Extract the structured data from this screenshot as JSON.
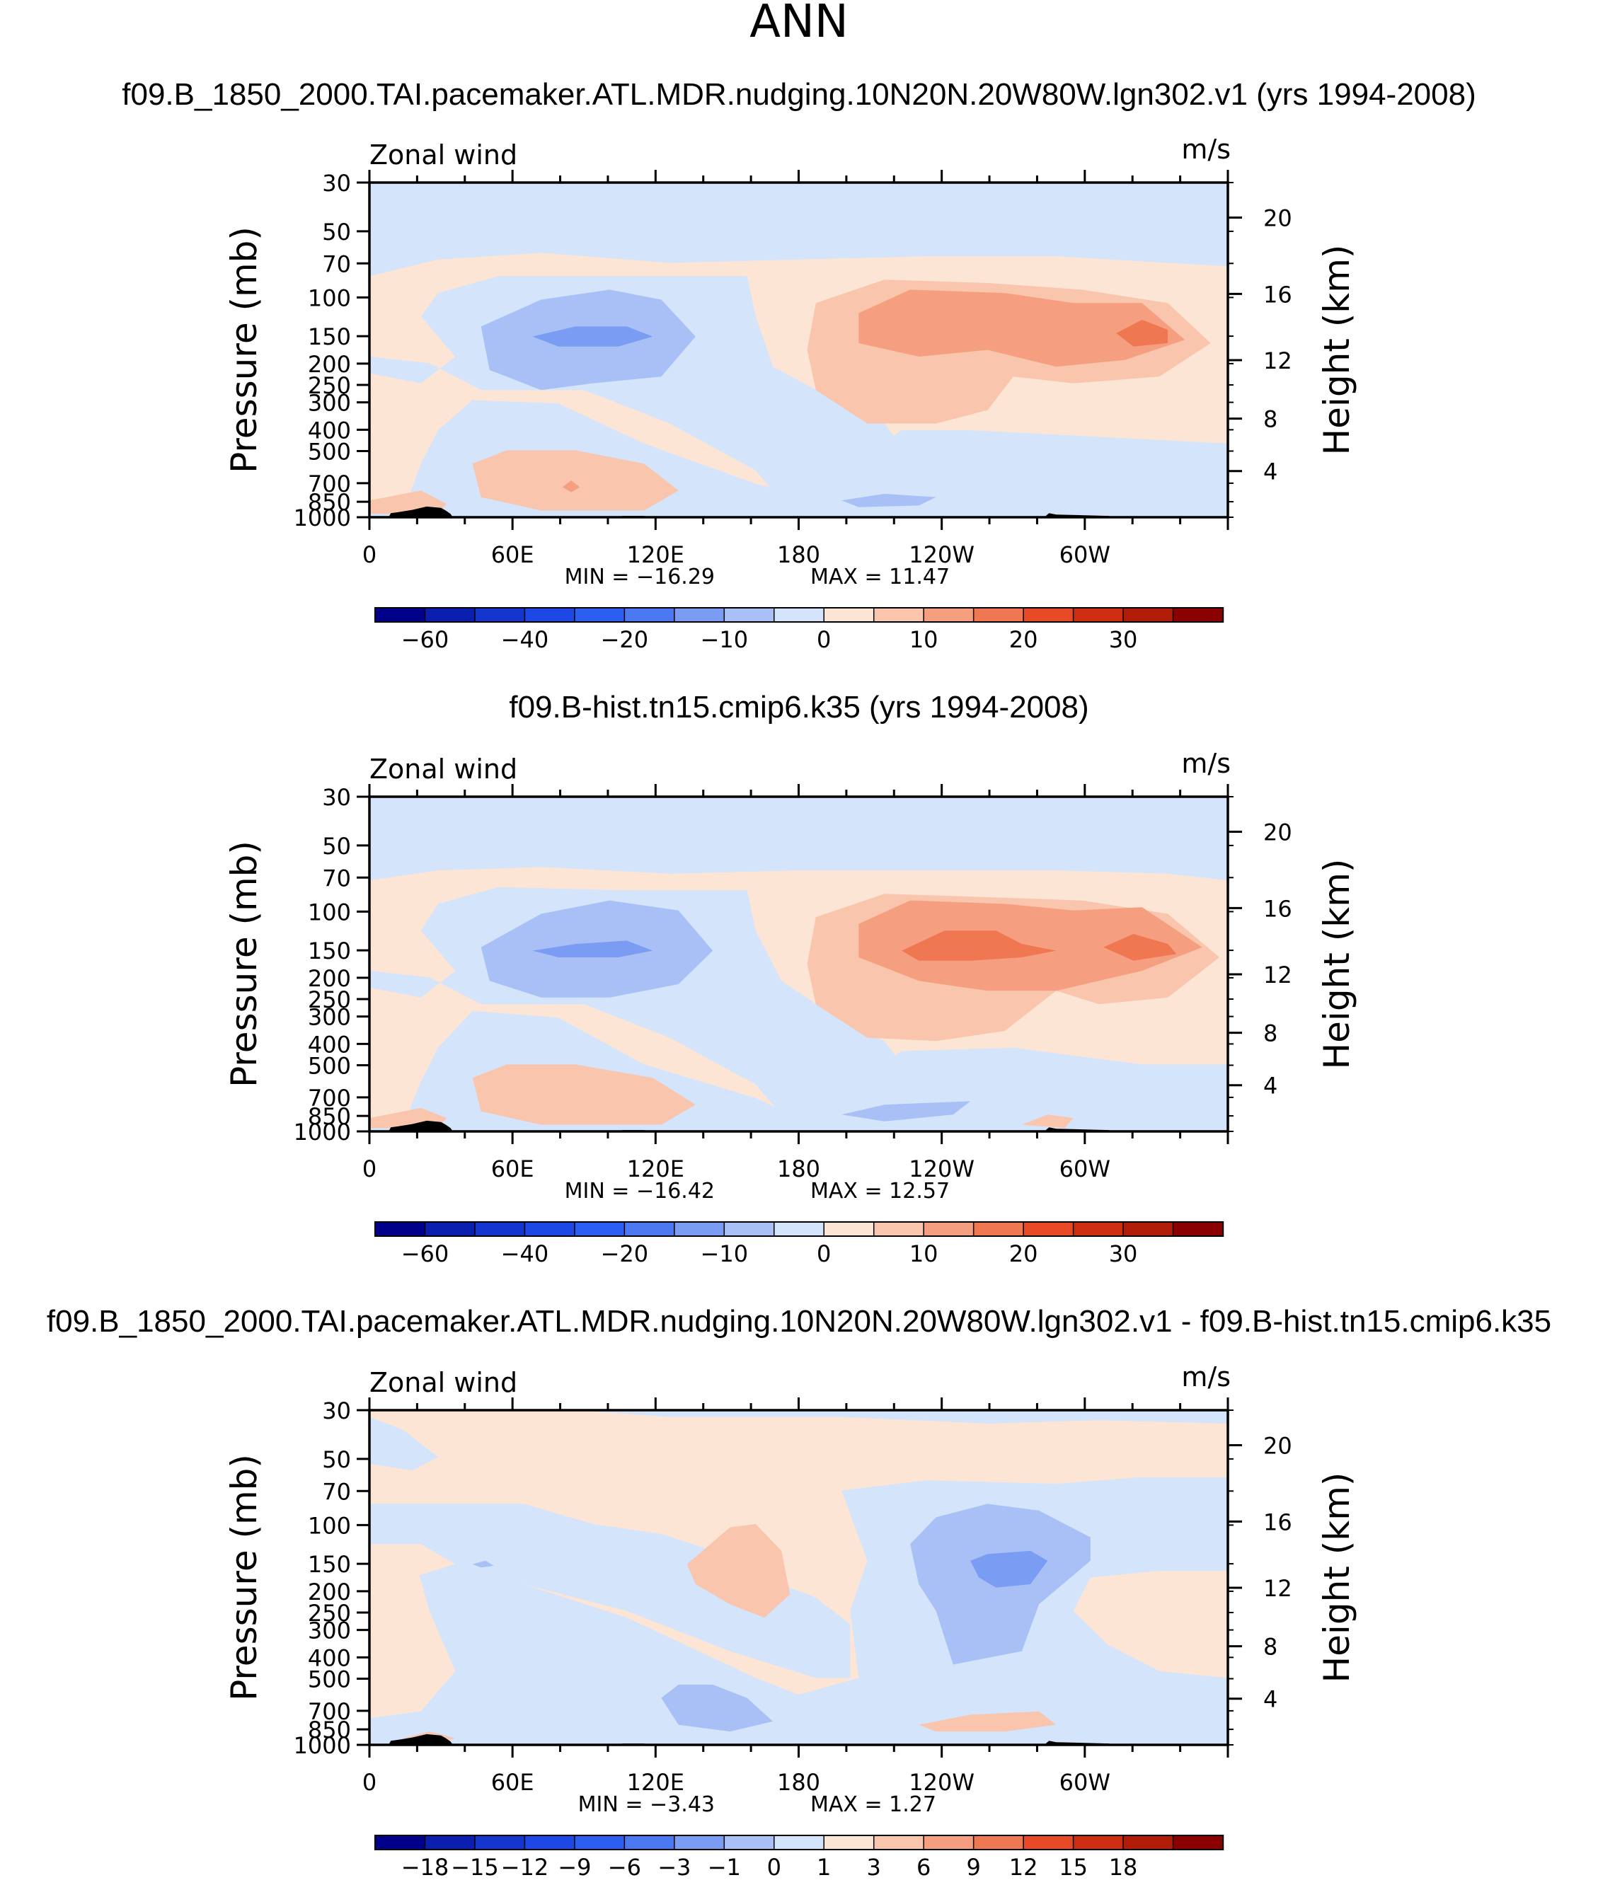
{
  "figure": {
    "title": "ANN",
    "units": "m/s",
    "variable": "Zonal wind",
    "left_axis_label": "Pressure (mb)",
    "right_axis_label": "Height (km)",
    "x_ticks": [
      "0",
      "60E",
      "120E",
      "180",
      "120W",
      "60W"
    ],
    "pressure_ticks": [
      "30",
      "50",
      "70",
      "100",
      "150",
      "200",
      "250",
      "300",
      "400",
      "500",
      "700",
      "850",
      "1000"
    ],
    "height_ticks": [
      "20",
      "16",
      "12",
      "8",
      "4"
    ]
  },
  "chart_data": [
    {
      "type": "heatmap",
      "title": "f09.B_1850_2000.TAI.pacemaker.ATL.MDR.nudging.10N20N.20W80W.lgn302.v1 (yrs 1994-2008)",
      "min_label": "MIN = −16.29",
      "max_label": "MAX =   11.47",
      "min": -16.29,
      "max": 11.47,
      "colorbar_levels": [
        "−60",
        "−40",
        "−20",
        "−10",
        "0",
        "10",
        "20",
        "30"
      ],
      "colorbar_colors": [
        "#00008b",
        "#0a1fb0",
        "#1535cf",
        "#1d48e6",
        "#2c5ef2",
        "#4a78f0",
        "#7a9cf2",
        "#a9c0f7",
        "#d3e4fb",
        "#fde5d5",
        "#f9c5ac",
        "#f59f80",
        "#ef7752",
        "#e84a28",
        "#cf2d12",
        "#b01c08",
        "#8b0000"
      ],
      "xlim": [
        0,
        360
      ],
      "ylim_mb": [
        1000,
        30
      ]
    },
    {
      "type": "heatmap",
      "title": "f09.B-hist.tn15.cmip6.k35 (yrs 1994-2008)",
      "min_label": "MIN = −16.42",
      "max_label": "MAX =   12.57",
      "min": -16.42,
      "max": 12.57,
      "colorbar_levels": [
        "−60",
        "−40",
        "−20",
        "−10",
        "0",
        "10",
        "20",
        "30"
      ],
      "colorbar_colors": [
        "#00008b",
        "#0a1fb0",
        "#1535cf",
        "#1d48e6",
        "#2c5ef2",
        "#4a78f0",
        "#7a9cf2",
        "#a9c0f7",
        "#d3e4fb",
        "#fde5d5",
        "#f9c5ac",
        "#f59f80",
        "#ef7752",
        "#e84a28",
        "#cf2d12",
        "#b01c08",
        "#8b0000"
      ],
      "xlim": [
        0,
        360
      ],
      "ylim_mb": [
        1000,
        30
      ]
    },
    {
      "type": "heatmap",
      "title": "f09.B_1850_2000.TAI.pacemaker.ATL.MDR.nudging.10N20N.20W80W.lgn302.v1 - f09.B-hist.tn15.cmip6.k35",
      "min_label": "MIN = −3.43",
      "max_label": "MAX =   1.27",
      "min": -3.43,
      "max": 1.27,
      "colorbar_levels": [
        "−18",
        "−15",
        "−12",
        "−9",
        "−6",
        "−3",
        "−1",
        "0",
        "1",
        "3",
        "6",
        "9",
        "12",
        "15",
        "18"
      ],
      "colorbar_colors": [
        "#00008b",
        "#0a1fb0",
        "#1535cf",
        "#1d48e6",
        "#2c5ef2",
        "#4a78f0",
        "#7a9cf2",
        "#a9c0f7",
        "#d3e4fb",
        "#fde5d5",
        "#f9c5ac",
        "#f59f80",
        "#ef7752",
        "#e84a28",
        "#cf2d12",
        "#b01c08",
        "#8b0000"
      ],
      "xlim": [
        0,
        360
      ],
      "ylim_mb": [
        1000,
        30
      ]
    }
  ]
}
